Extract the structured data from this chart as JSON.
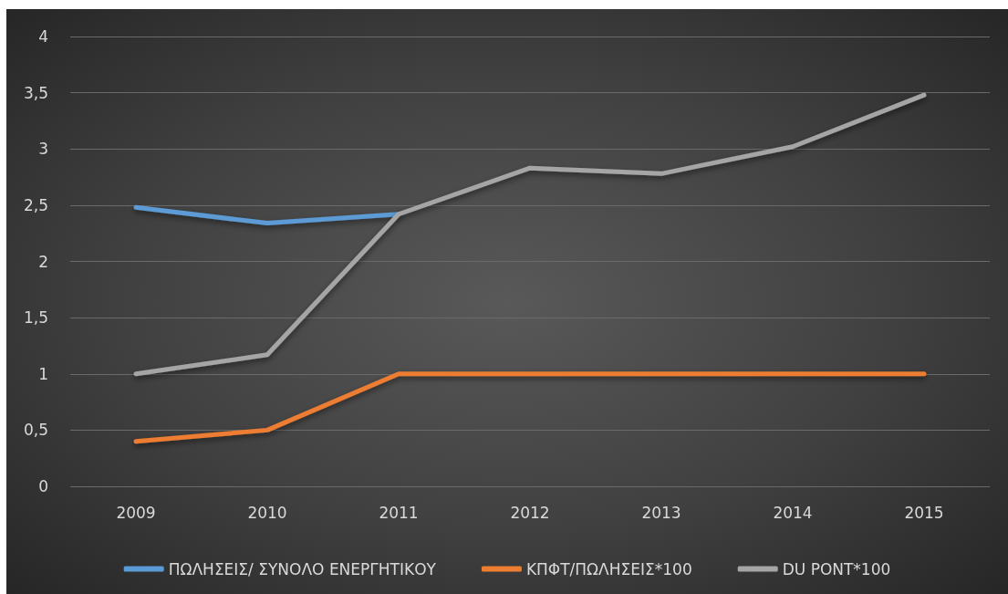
{
  "chart_data": {
    "type": "line",
    "categories": [
      "2009",
      "2010",
      "2011",
      "2012",
      "2013",
      "2014",
      "2015"
    ],
    "series": [
      {
        "name": "ΠΩΛΗΣΕΙΣ/ ΣΥΝΟΛΟ ΕΝΕΡΓΗΤΙΚΟΥ",
        "color": "#5b9bd5",
        "values": [
          2.48,
          2.34,
          2.42,
          null,
          null,
          null,
          null
        ]
      },
      {
        "name": "ΚΠΦΤ/ΠΩΛΗΣΕΙΣ*100",
        "color": "#ed7d31",
        "values": [
          0.4,
          0.5,
          1,
          1,
          1,
          1,
          1
        ]
      },
      {
        "name": "DU PONT*100",
        "color": "#a5a5a5",
        "values": [
          1,
          1.17,
          2.42,
          2.83,
          2.78,
          3.02,
          3.48
        ]
      }
    ],
    "ylim": [
      0,
      4
    ],
    "yticks": [
      {
        "value": 0,
        "label": "0"
      },
      {
        "value": 0.5,
        "label": "0,5"
      },
      {
        "value": 1,
        "label": "1"
      },
      {
        "value": 1.5,
        "label": "1,5"
      },
      {
        "value": 2,
        "label": "2"
      },
      {
        "value": 2.5,
        "label": "2,5"
      },
      {
        "value": 3,
        "label": "3"
      },
      {
        "value": 3.5,
        "label": "3,5"
      },
      {
        "value": 4,
        "label": "4"
      }
    ],
    "grid": "y",
    "legend": "bottom",
    "marker": "none",
    "line_style": "solid"
  }
}
